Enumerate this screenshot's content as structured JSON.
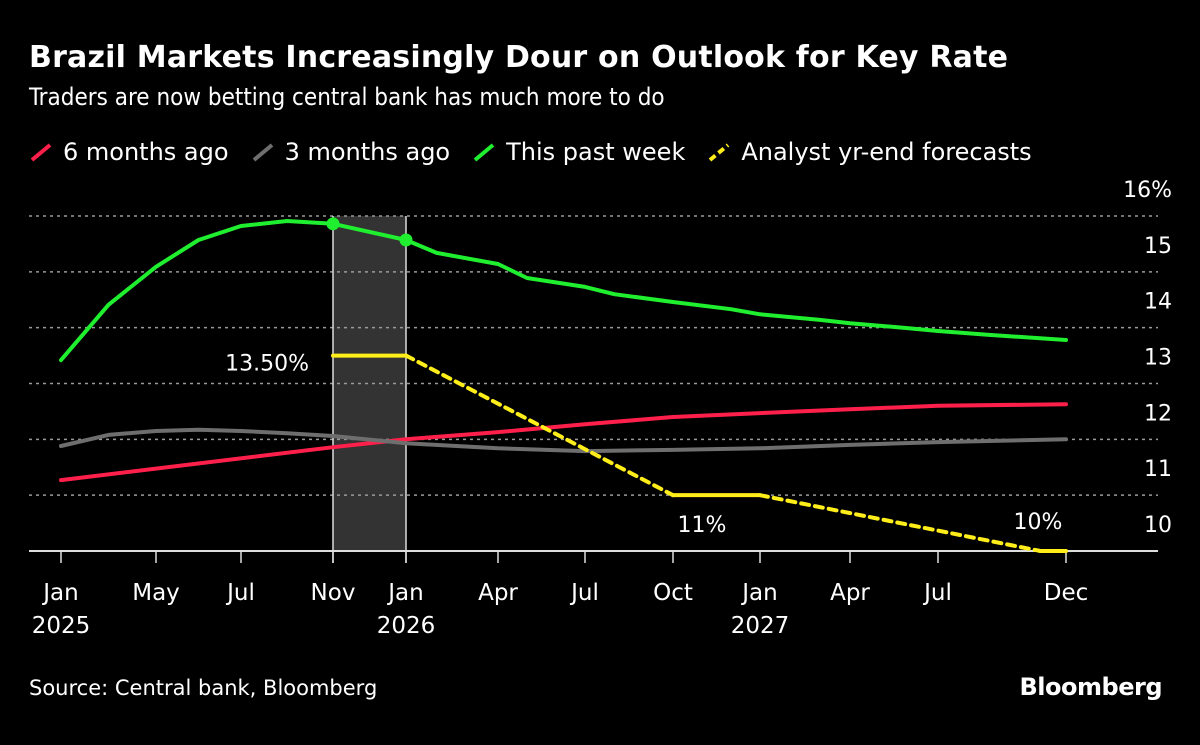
{
  "header": {
    "title": "Brazil Markets Increasingly Dour on Outlook for Key Rate",
    "subtitle": "Traders are now betting central bank has much more to do"
  },
  "footer": {
    "source": "Source: Central bank, Bloomberg",
    "logo": "Bloomberg"
  },
  "chart_data": {
    "type": "line",
    "title": "Brazil Markets Increasingly Dour on Outlook for Key Rate",
    "subtitle": "Traders are now betting central bank has much more to do",
    "legend_position": "top",
    "grid": true,
    "y_axis": {
      "position": "right",
      "ylim": [
        10,
        16
      ],
      "ticks": [
        10,
        11,
        12,
        13,
        14,
        15,
        16
      ],
      "tick_labels": [
        "10",
        "11",
        "12",
        "13",
        "14",
        "15",
        "16%"
      ]
    },
    "x_axis": {
      "ticks": [
        {
          "date": "2025-01",
          "label": "Jan",
          "sublabel": "2025"
        },
        {
          "date": "2025-05",
          "label": "May",
          "sublabel": ""
        },
        {
          "date": "2025-07",
          "label": "Jul",
          "sublabel": ""
        },
        {
          "date": "2025-11",
          "label": "Nov",
          "sublabel": ""
        },
        {
          "date": "2026-01",
          "label": "Jan",
          "sublabel": "2026"
        },
        {
          "date": "2026-04",
          "label": "Apr",
          "sublabel": ""
        },
        {
          "date": "2026-07",
          "label": "Jul",
          "sublabel": ""
        },
        {
          "date": "2026-10",
          "label": "Oct",
          "sublabel": ""
        },
        {
          "date": "2027-01",
          "label": "Jan",
          "sublabel": "2027"
        },
        {
          "date": "2027-04",
          "label": "Apr",
          "sublabel": ""
        },
        {
          "date": "2027-07",
          "label": "Jul",
          "sublabel": ""
        },
        {
          "date": "2027-12",
          "label": "Dec",
          "sublabel": ""
        }
      ]
    },
    "shaded_range": {
      "from": "2025-11",
      "to": "2026-01",
      "color": "#333333"
    },
    "series": [
      {
        "name": "6 months ago",
        "color": "#ff1f4b",
        "style": "solid",
        "points": [
          [
            "2025-01",
            11.27
          ],
          [
            "2025-11",
            11.86
          ],
          [
            "2026-01",
            12.0
          ],
          [
            "2026-04",
            12.13
          ],
          [
            "2026-07",
            12.27
          ],
          [
            "2026-10",
            12.4
          ],
          [
            "2027-01",
            12.47
          ],
          [
            "2027-04",
            12.54
          ],
          [
            "2027-07",
            12.6
          ],
          [
            "2027-12",
            12.63
          ]
        ]
      },
      {
        "name": "3 months ago",
        "color": "#6e6e6e",
        "style": "solid",
        "points": [
          [
            "2025-01",
            11.88
          ],
          [
            "2025-03",
            12.08
          ],
          [
            "2025-05",
            12.15
          ],
          [
            "2025-06",
            12.17
          ],
          [
            "2025-07",
            12.15
          ],
          [
            "2025-09",
            12.11
          ],
          [
            "2025-11",
            12.06
          ],
          [
            "2026-01",
            11.93
          ],
          [
            "2026-04",
            11.84
          ],
          [
            "2026-07",
            11.79
          ],
          [
            "2026-10",
            11.81
          ],
          [
            "2027-01",
            11.84
          ],
          [
            "2027-04",
            11.9
          ],
          [
            "2027-07",
            11.95
          ],
          [
            "2027-12",
            12.0
          ]
        ]
      },
      {
        "name": "This past week",
        "color": "#1fef2f",
        "style": "solid",
        "markers": [
          "2025-11",
          "2026-01"
        ],
        "points": [
          [
            "2025-01",
            13.42
          ],
          [
            "2025-03",
            14.41
          ],
          [
            "2025-05",
            15.09
          ],
          [
            "2025-06",
            15.57
          ],
          [
            "2025-07",
            15.82
          ],
          [
            "2025-09",
            15.91
          ],
          [
            "2025-11",
            15.86
          ],
          [
            "2026-01",
            15.57
          ],
          [
            "2026-02",
            15.34
          ],
          [
            "2026-04",
            15.14
          ],
          [
            "2026-05",
            14.89
          ],
          [
            "2026-07",
            14.73
          ],
          [
            "2026-08",
            14.6
          ],
          [
            "2026-10",
            14.46
          ],
          [
            "2026-12",
            14.33
          ],
          [
            "2027-01",
            14.24
          ],
          [
            "2027-03",
            14.14
          ],
          [
            "2027-04",
            14.08
          ],
          [
            "2027-06",
            13.99
          ],
          [
            "2027-07",
            13.94
          ],
          [
            "2027-09",
            13.87
          ],
          [
            "2027-12",
            13.78
          ]
        ]
      },
      {
        "name": "Analyst yr-end forecasts",
        "color": "#ffee1a",
        "style": "step-dashed",
        "points": [
          [
            "2025-11",
            13.5
          ],
          [
            "2026-01",
            13.5
          ],
          [
            "2026-10",
            11.0
          ],
          [
            "2027-01",
            11.0
          ],
          [
            "2027-11",
            10.0
          ],
          [
            "2027-12",
            10.0
          ]
        ]
      }
    ],
    "annotations": [
      {
        "text": "13.50%",
        "date": "2025-11",
        "value": 13.5
      },
      {
        "text": "11%",
        "date": "2026-11",
        "value": 11.0
      },
      {
        "text": "10%",
        "date": "2027-12",
        "value": 10.0
      }
    ]
  }
}
